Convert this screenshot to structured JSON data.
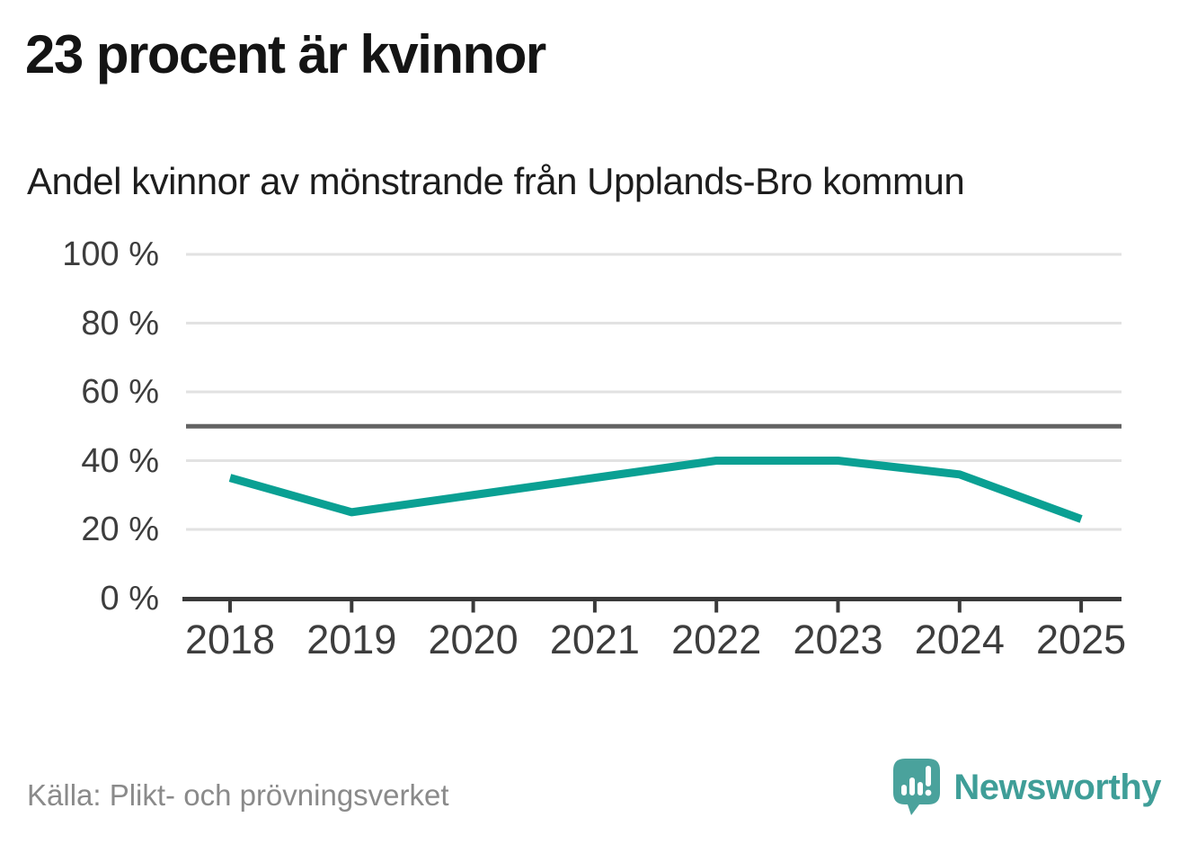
{
  "header": {
    "title": "23 procent är kvinnor",
    "subtitle": "Andel kvinnor av mönstrande från Upplands-Bro kommun"
  },
  "chart_data": {
    "type": "line",
    "title": "Andel kvinnor av mönstrande från Upplands-Bro kommun",
    "categories": [
      "2018",
      "2019",
      "2020",
      "2021",
      "2022",
      "2023",
      "2024",
      "2025"
    ],
    "series": [
      {
        "name": "Andel kvinnor av mönstrande",
        "values": [
          35,
          25,
          30,
          35,
          40,
          40,
          36,
          23
        ]
      }
    ],
    "unit": "%",
    "xlabel": "",
    "ylabel": "",
    "ylim": [
      0,
      100
    ],
    "yticks": [
      0,
      20,
      40,
      60,
      80,
      100
    ],
    "ytick_labels": [
      "0 %",
      "20 %",
      "40 %",
      "60 %",
      "80 %",
      "100 %"
    ],
    "reference_line": {
      "value": 50,
      "color": "#636363"
    },
    "grid": true,
    "legend": "none",
    "line_color": "#0aa093",
    "grid_color": "#e2e2e2",
    "axis_color": "#3a3a3a",
    "label_color": "#3d3d3d"
  },
  "footer": {
    "source": "Källa: Plikt- och prövningsverket",
    "brand": "Newsworthy",
    "brand_color": "#3f9e98",
    "logo_bubble_color": "#4aa29c"
  }
}
